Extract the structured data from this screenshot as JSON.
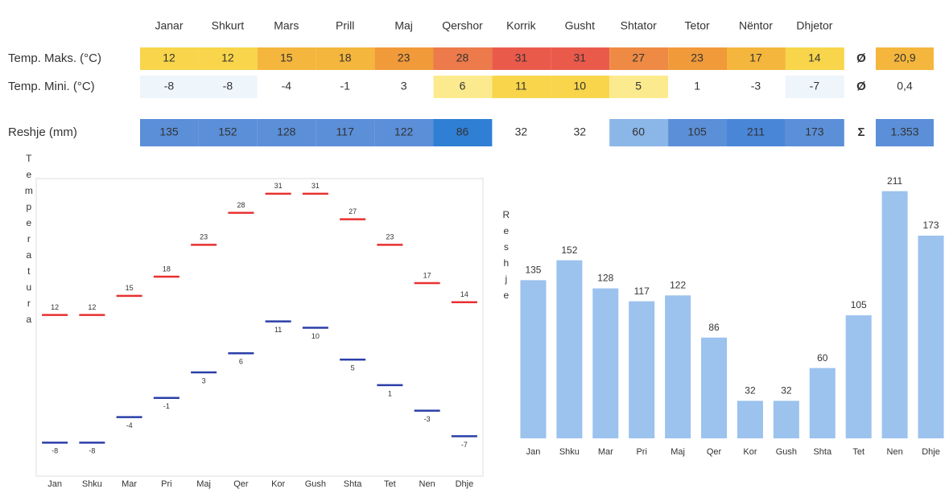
{
  "table": {
    "header": [
      "Janar",
      "Shkurt",
      "Mars",
      "Prill",
      "Maj",
      "Qershor",
      "Korrik",
      "Gusht",
      "Shtator",
      "Tetor",
      "Nëntor",
      "Dhjetor"
    ],
    "rows": [
      {
        "label": "Temp. Maks. (°C)",
        "cells": [
          12,
          12,
          15,
          18,
          23,
          28,
          31,
          31,
          27,
          23,
          17,
          14
        ],
        "symbol": "Ø",
        "total": "20,9"
      },
      {
        "label": "Temp. Mini. (°C)",
        "cells": [
          -8,
          -8,
          -4,
          -1,
          3,
          6,
          11,
          10,
          5,
          1,
          -3,
          -7
        ],
        "symbol": "Ø",
        "total": "0,4"
      },
      {
        "label": "Reshje (mm)",
        "cells": [
          135,
          152,
          128,
          117,
          122,
          86,
          32,
          32,
          60,
          105,
          211,
          173
        ],
        "symbol": "Σ",
        "total": "1.353"
      }
    ]
  },
  "chart_data": [
    {
      "type": "dash",
      "y_label": "Temperatura",
      "categories": [
        "Jan",
        "Shku",
        "Mar",
        "Pri",
        "Maj",
        "Qer",
        "Kor",
        "Gush",
        "Shta",
        "Tet",
        "Nen",
        "Dhje"
      ],
      "series": [
        {
          "color": "#e83030",
          "values": [
            12,
            12,
            15,
            18,
            23,
            28,
            31,
            31,
            27,
            23,
            17,
            14
          ]
        },
        {
          "color": "#2a3fa8",
          "values": [
            -8,
            -8,
            -4,
            -1,
            3,
            6,
            11,
            10,
            5,
            1,
            -3,
            -7
          ]
        }
      ],
      "ylim": [
        -13,
        33
      ]
    },
    {
      "type": "bar",
      "y_label": "Reshje",
      "categories": [
        "Jan",
        "Shku",
        "Mar",
        "Pri",
        "Maj",
        "Qer",
        "Kor",
        "Gush",
        "Shta",
        "Tet",
        "Nen",
        "Dhje"
      ],
      "color": "#9cc2ee",
      "values": [
        135,
        152,
        128,
        117,
        122,
        86,
        32,
        32,
        60,
        105,
        211,
        173
      ],
      "ylim": [
        0,
        230
      ]
    }
  ]
}
